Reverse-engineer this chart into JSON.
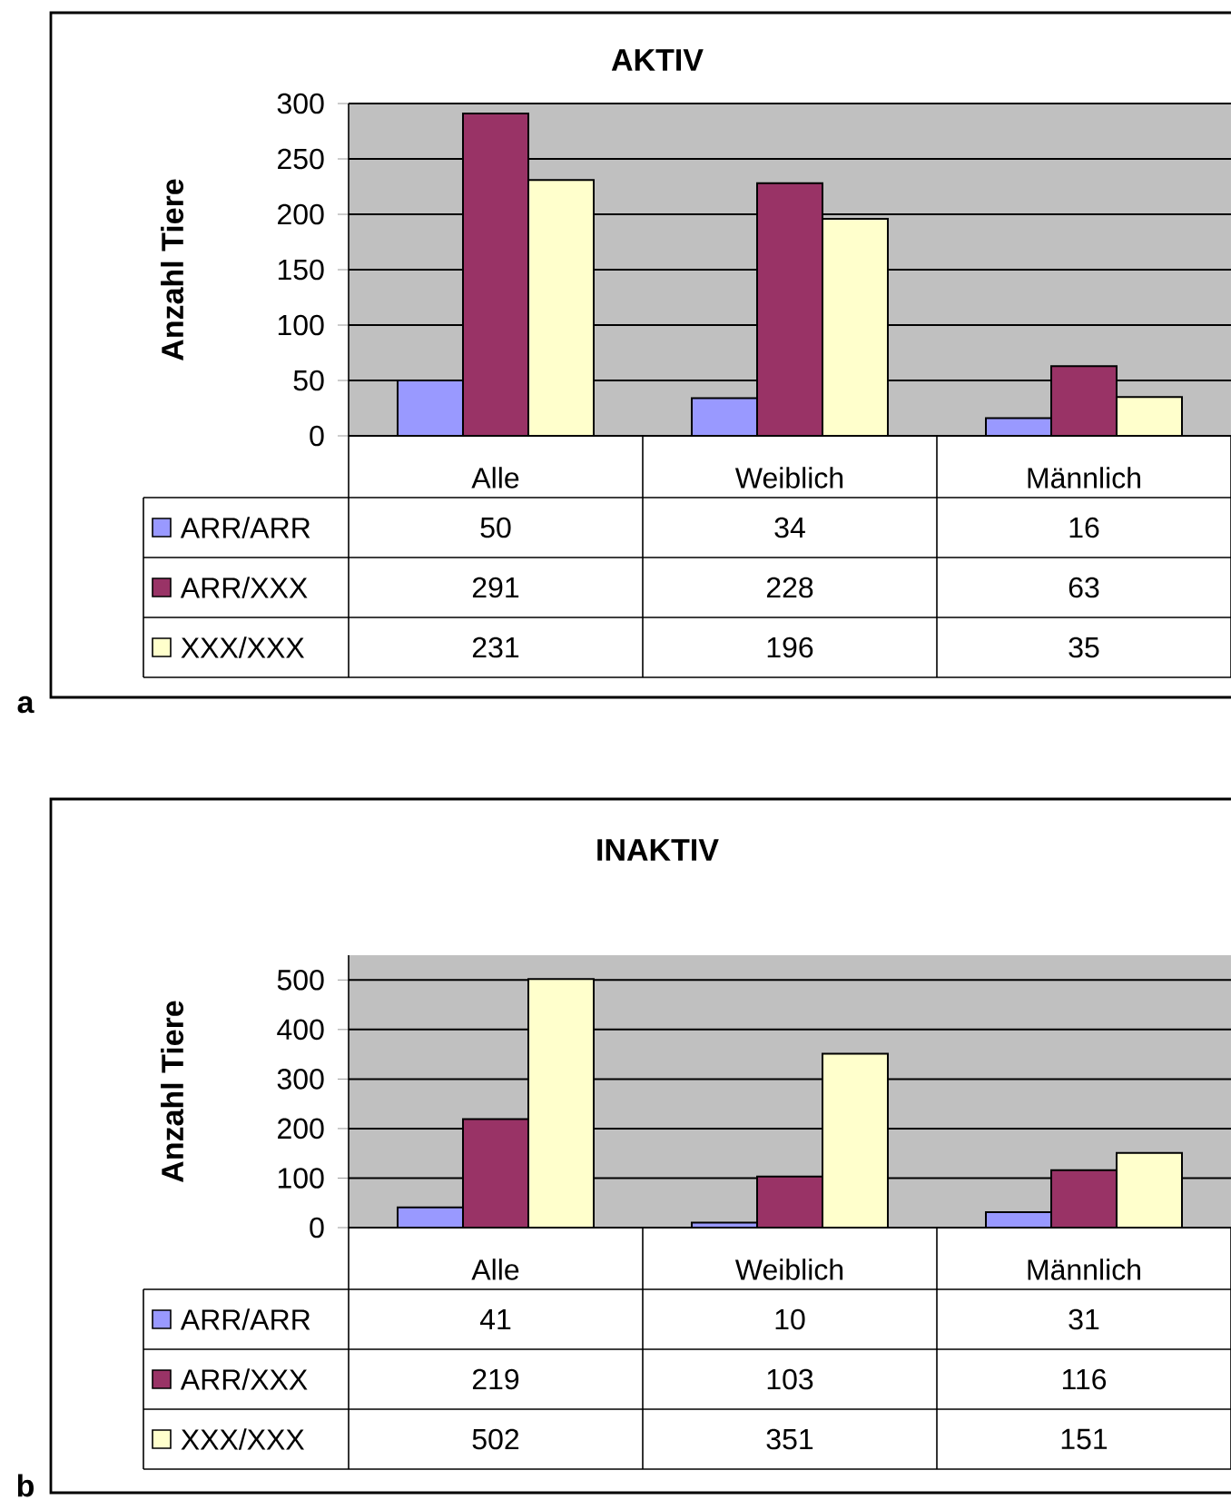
{
  "chart_data": [
    {
      "type": "bar",
      "title": "AKTIV",
      "ylabel": "Anzahl Tiere",
      "categories": [
        "Alle",
        "Weiblich",
        "Männlich"
      ],
      "series": [
        {
          "name": "ARR/ARR",
          "color": "#9999ff",
          "values": [
            50,
            34,
            16
          ]
        },
        {
          "name": "ARR/XXX",
          "color": "#993366",
          "values": [
            291,
            228,
            63
          ]
        },
        {
          "name": "XXX/XXX",
          "color": "#ffffcc",
          "values": [
            231,
            196,
            35
          ]
        }
      ],
      "ylim": [
        0,
        300
      ],
      "yticks": [
        0,
        50,
        100,
        150,
        200,
        250,
        300
      ],
      "grid": "y",
      "legend": "bottom left",
      "data_labels": true,
      "annotations": [
        "a"
      ]
    },
    {
      "type": "bar",
      "title": "INAKTIV",
      "ylabel": "Anzahl Tiere",
      "categories": [
        "Alle",
        "Weiblich",
        "Männlich"
      ],
      "series": [
        {
          "name": "ARR/ARR",
          "color": "#9999ff",
          "values": [
            41,
            10,
            31
          ]
        },
        {
          "name": "ARR/XXX",
          "color": "#993366",
          "values": [
            219,
            103,
            116
          ]
        },
        {
          "name": "XXX/XXX",
          "color": "#ffffcc",
          "values": [
            502,
            351,
            151
          ]
        }
      ],
      "ylim": [
        0,
        550
      ],
      "yticks": [
        0,
        100,
        200,
        300,
        400,
        500
      ],
      "grid": "y",
      "legend": "bottom left",
      "data_labels": true,
      "annotations": [
        "b"
      ]
    }
  ]
}
